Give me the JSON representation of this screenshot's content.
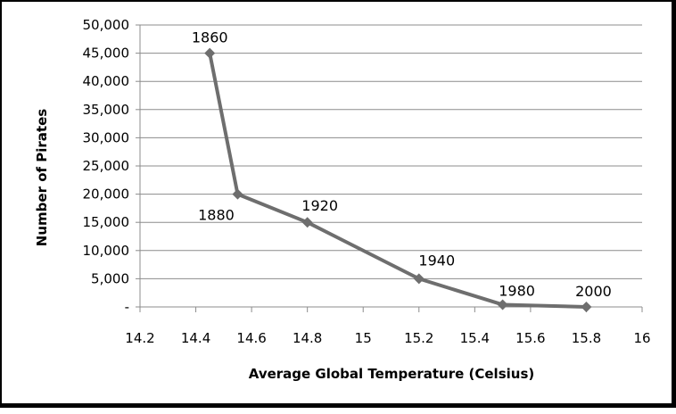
{
  "chart_data": {
    "type": "line",
    "title": "",
    "xlabel": "Average Global Temperature (Celsius)",
    "ylabel": "Number of Pirates",
    "xlim": [
      14.2,
      16
    ],
    "ylim": [
      0,
      50000
    ],
    "x_ticks": [
      "14.2",
      "14.4",
      "14.6",
      "14.8",
      "15",
      "15.2",
      "15.4",
      "15.6",
      "15.8",
      "16"
    ],
    "y_ticks": [
      "-",
      "5,000",
      "10,000",
      "15,000",
      "20,000",
      "25,000",
      "30,000",
      "35,000",
      "40,000",
      "45,000",
      "50,000"
    ],
    "grid": "horizontal",
    "marker": "diamond",
    "series_color": "#6e6e6e",
    "points": [
      {
        "x": 14.45,
        "y": 45000,
        "label": "1860"
      },
      {
        "x": 14.55,
        "y": 20000,
        "label": "1880"
      },
      {
        "x": 14.8,
        "y": 15000,
        "label": "1920"
      },
      {
        "x": 15.2,
        "y": 5000,
        "label": "1940"
      },
      {
        "x": 15.5,
        "y": 400,
        "label": "1980"
      },
      {
        "x": 15.8,
        "y": 0,
        "label": "2000"
      }
    ]
  }
}
